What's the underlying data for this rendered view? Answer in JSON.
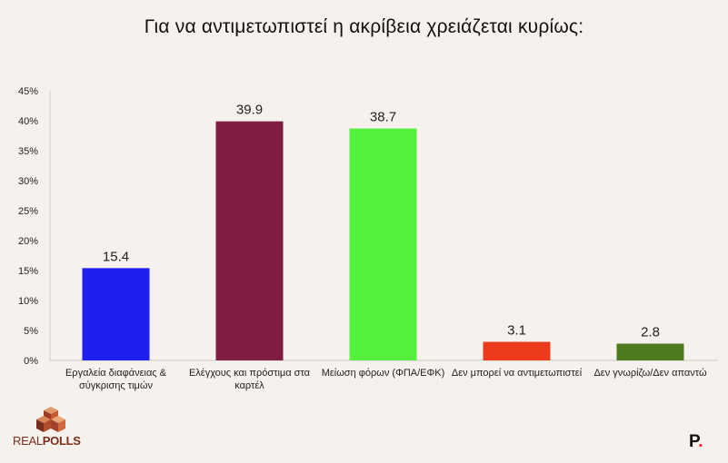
{
  "chart_data": {
    "type": "bar",
    "title": "Για να αντιμετωπιστεί η ακρίβεια χρειάζεται κυρίως:",
    "categories": [
      [
        "Εργαλεία διαφάνειας &",
        "σύγκρισης τιμών"
      ],
      [
        "Ελέγχους και πρόστιμα στα",
        "καρτέλ"
      ],
      [
        "Μείωση φόρων (ΦΠΑ/ΕΦΚ)"
      ],
      [
        "Δεν μπορεί να αντιμετωπιστεί"
      ],
      [
        "Δεν γνωρίζω/Δεν απαντώ"
      ]
    ],
    "values": [
      15.4,
      39.9,
      38.7,
      3.1,
      2.8
    ],
    "data_labels": [
      "15.4",
      "39.9",
      "38.7",
      "3.1",
      "2.8"
    ],
    "colors": [
      "#1f1ff0",
      "#7f1d45",
      "#55f03c",
      "#ee3a1c",
      "#4f7a1f"
    ],
    "ylim": [
      0,
      45
    ],
    "yticks": [
      "0%",
      "5%",
      "10%",
      "15%",
      "20%",
      "25%",
      "30%",
      "35%",
      "40%",
      "45%"
    ],
    "ytick_values": [
      0,
      5,
      10,
      15,
      20,
      25,
      30,
      35,
      40,
      45
    ],
    "grid": false,
    "xlabel": "",
    "ylabel": ""
  },
  "branding": {
    "logo_text_light": "REAL",
    "logo_text_bold": "POLLS",
    "brand_mark_letter": "P",
    "brand_mark_dot": "."
  }
}
